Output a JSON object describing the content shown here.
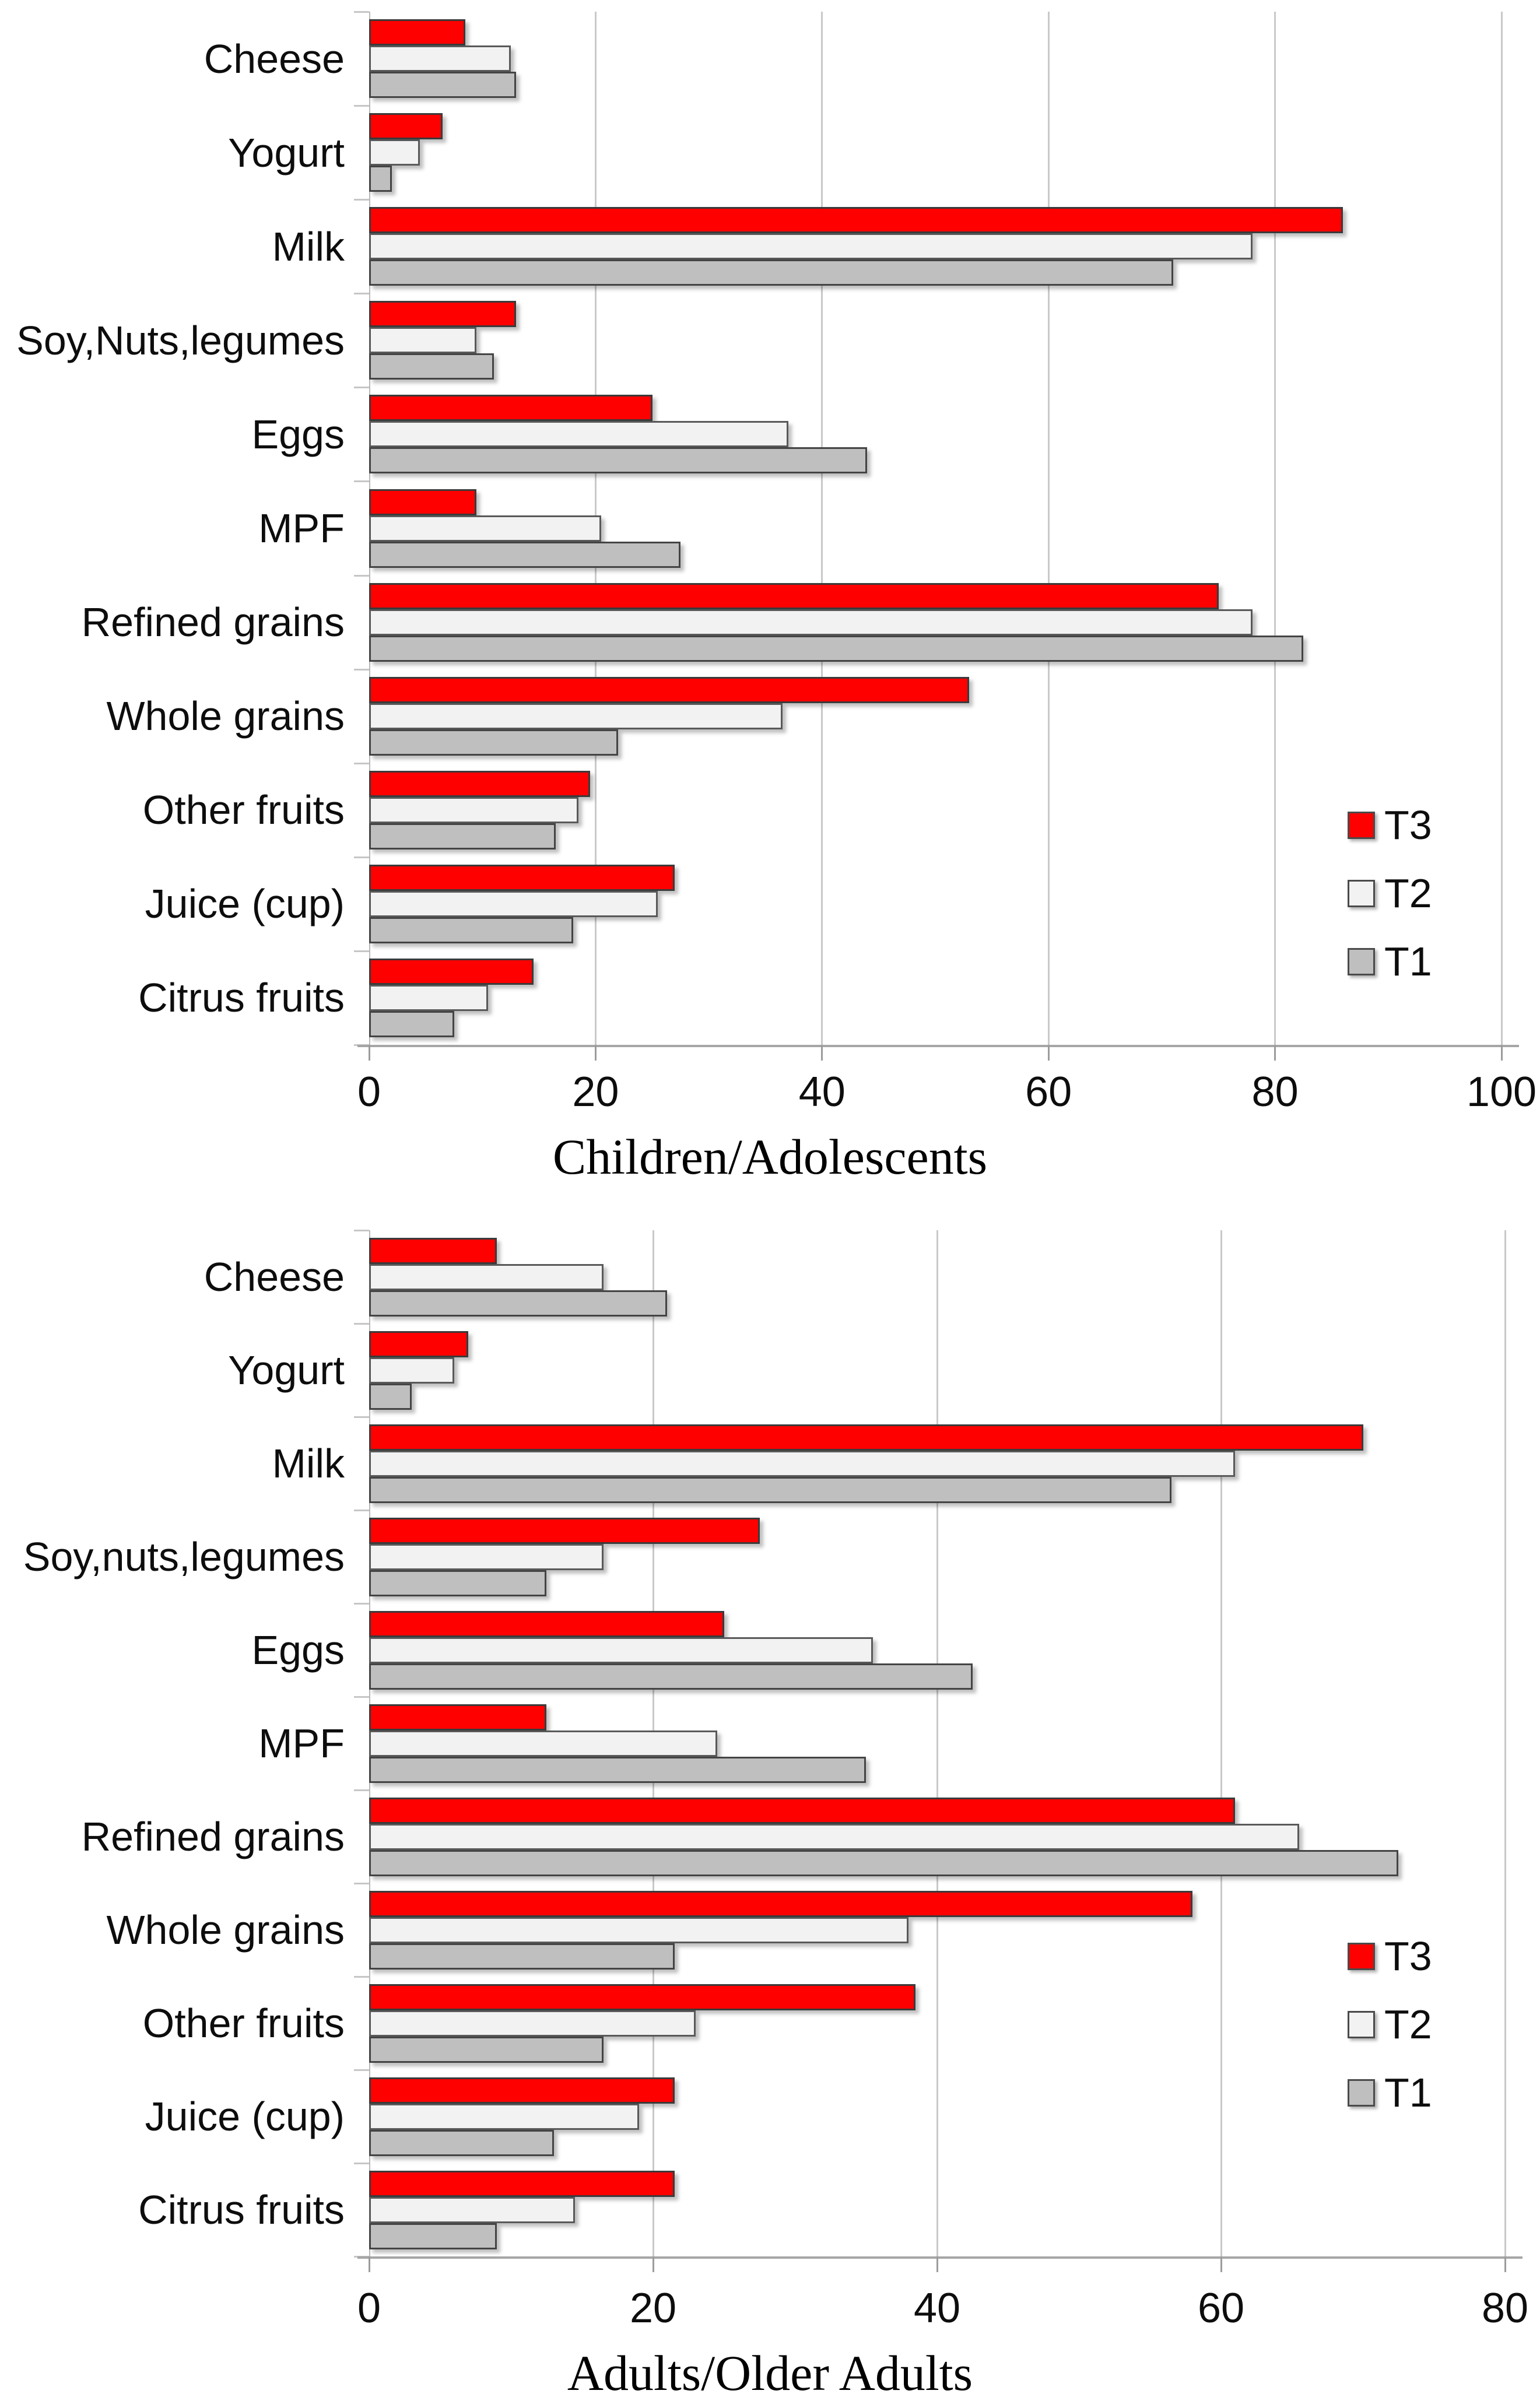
{
  "chart_data": [
    {
      "type": "bar",
      "orientation": "horizontal",
      "title": "Children/Adolescents",
      "xlabel": "",
      "ylabel": "",
      "xlim": [
        0,
        100
      ],
      "xticks": [
        0,
        20,
        40,
        60,
        80,
        100
      ],
      "grid": true,
      "legend_position": "right",
      "legend": [
        "T3",
        "T2",
        "T1"
      ],
      "categories": [
        "Cheese",
        "Yogurt",
        "Milk",
        "Soy,Nuts,legumes",
        "Eggs",
        "MPF",
        "Refined grains",
        "Whole grains",
        "Other fruits",
        "Juice (cup)",
        "Citrus fruits"
      ],
      "series": [
        {
          "name": "T3",
          "color": "#ff0000",
          "values": [
            8.5,
            6.5,
            86,
            13,
            25,
            9.5,
            75,
            53,
            19.5,
            27,
            14.5
          ]
        },
        {
          "name": "T2",
          "color": "#f2f2f2",
          "values": [
            12.5,
            4.5,
            78,
            9.5,
            37,
            20.5,
            78,
            36.5,
            18.5,
            25.5,
            10.5
          ]
        },
        {
          "name": "T1",
          "color": "#bfbfbf",
          "values": [
            13,
            2,
            71,
            11,
            44,
            27.5,
            82.5,
            22,
            16.5,
            18,
            7.5
          ]
        }
      ]
    },
    {
      "type": "bar",
      "orientation": "horizontal",
      "title": "Adults/Older Adults",
      "xlabel": "",
      "ylabel": "",
      "xlim": [
        0,
        80
      ],
      "xticks": [
        0,
        20,
        40,
        60,
        80
      ],
      "grid": true,
      "legend_position": "right",
      "legend": [
        "T3",
        "T2",
        "T1"
      ],
      "categories": [
        "Cheese",
        "Yogurt",
        "Milk",
        "Soy,nuts,legumes",
        "Eggs",
        "MPF",
        "Refined grains",
        "Whole grains",
        "Other fruits",
        "Juice (cup)",
        "Citrus fruits"
      ],
      "series": [
        {
          "name": "T3",
          "color": "#ff0000",
          "values": [
            9,
            7,
            70,
            27.5,
            25,
            12.5,
            61,
            58,
            38.5,
            21.5,
            21.5
          ]
        },
        {
          "name": "T2",
          "color": "#f2f2f2",
          "values": [
            16.5,
            6,
            61,
            16.5,
            35.5,
            24.5,
            65.5,
            38,
            23,
            19,
            14.5
          ]
        },
        {
          "name": "T1",
          "color": "#bfbfbf",
          "values": [
            21,
            3,
            56.5,
            12.5,
            42.5,
            35,
            72.5,
            21.5,
            16.5,
            13,
            9
          ]
        }
      ]
    }
  ]
}
